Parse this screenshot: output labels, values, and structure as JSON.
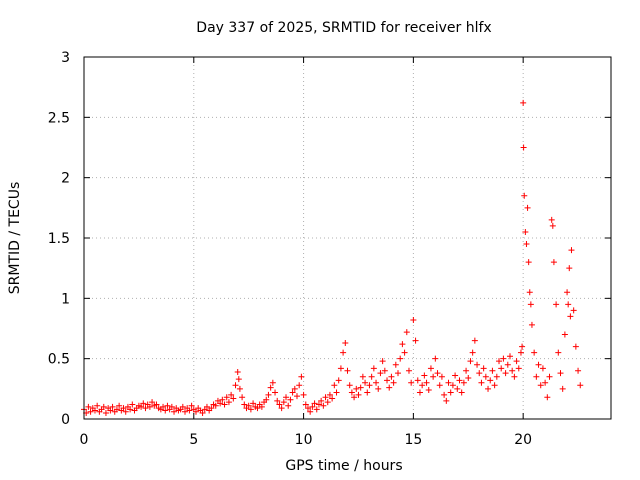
{
  "chart_data": {
    "type": "scatter",
    "title": "Day 337 of 2025, SRMTID for receiver hlfx",
    "xlabel": "GPS time / hours",
    "ylabel": "SRMTID / TECUs",
    "xlim": [
      0,
      24
    ],
    "ylim": [
      0,
      3
    ],
    "xticks": [
      0,
      5,
      10,
      15,
      20
    ],
    "xtick_labels": [
      "0",
      "5",
      "10",
      "15",
      "20"
    ],
    "yticks": [
      0,
      0.5,
      1,
      1.5,
      2,
      2.5,
      3
    ],
    "ytick_labels": [
      "0",
      "0.5",
      "1",
      "1.5",
      "2",
      "2.5",
      "3"
    ],
    "grid": true,
    "marker": "+",
    "color": "#ff0000",
    "series": [
      {
        "name": "SRMTID",
        "x": [
          0.0,
          0.1,
          0.2,
          0.3,
          0.4,
          0.5,
          0.6,
          0.7,
          0.8,
          0.9,
          1.0,
          1.1,
          1.2,
          1.3,
          1.4,
          1.5,
          1.6,
          1.7,
          1.8,
          1.9,
          2.0,
          2.1,
          2.2,
          2.3,
          2.4,
          2.5,
          2.6,
          2.7,
          2.8,
          2.9,
          3.0,
          3.1,
          3.2,
          3.3,
          3.4,
          3.5,
          3.6,
          3.7,
          3.8,
          3.9,
          4.0,
          4.1,
          4.2,
          4.3,
          4.4,
          4.5,
          4.6,
          4.7,
          4.8,
          4.9,
          5.0,
          5.1,
          5.2,
          5.3,
          5.4,
          5.5,
          5.6,
          5.7,
          5.8,
          5.9,
          6.0,
          6.1,
          6.2,
          6.3,
          6.4,
          6.5,
          6.6,
          6.7,
          6.8,
          6.9,
          7.0,
          7.05,
          7.1,
          7.2,
          7.3,
          7.4,
          7.5,
          7.6,
          7.7,
          7.8,
          7.9,
          8.0,
          8.1,
          8.2,
          8.3,
          8.4,
          8.5,
          8.6,
          8.7,
          8.8,
          8.9,
          9.0,
          9.1,
          9.2,
          9.3,
          9.4,
          9.5,
          9.6,
          9.7,
          9.8,
          9.9,
          10.0,
          10.1,
          10.2,
          10.3,
          10.4,
          10.5,
          10.6,
          10.7,
          10.8,
          10.9,
          11.0,
          11.1,
          11.2,
          11.3,
          11.4,
          11.5,
          11.6,
          11.7,
          11.8,
          11.9,
          12.0,
          12.1,
          12.2,
          12.3,
          12.4,
          12.5,
          12.6,
          12.7,
          12.8,
          12.9,
          13.0,
          13.1,
          13.2,
          13.3,
          13.4,
          13.5,
          13.6,
          13.7,
          13.8,
          13.9,
          14.0,
          14.1,
          14.2,
          14.3,
          14.4,
          14.5,
          14.6,
          14.7,
          14.8,
          14.9,
          15.0,
          15.1,
          15.2,
          15.3,
          15.4,
          15.5,
          15.6,
          15.7,
          15.8,
          15.9,
          16.0,
          16.1,
          16.2,
          16.3,
          16.4,
          16.5,
          16.6,
          16.7,
          16.8,
          16.9,
          17.0,
          17.1,
          17.2,
          17.3,
          17.4,
          17.5,
          17.6,
          17.7,
          17.8,
          17.9,
          18.0,
          18.1,
          18.2,
          18.3,
          18.4,
          18.5,
          18.6,
          18.7,
          18.8,
          18.9,
          19.0,
          19.1,
          19.2,
          19.3,
          19.4,
          19.5,
          19.6,
          19.7,
          19.8,
          19.9,
          19.95,
          20.0,
          20.02,
          20.05,
          20.1,
          20.15,
          20.2,
          20.25,
          20.3,
          20.35,
          20.4,
          20.5,
          20.6,
          20.7,
          20.8,
          20.9,
          21.0,
          21.1,
          21.2,
          21.3,
          21.35,
          21.4,
          21.5,
          21.6,
          21.7,
          21.8,
          21.9,
          22.0,
          22.05,
          22.1,
          22.15,
          22.2,
          22.3,
          22.4,
          22.5,
          22.6
        ],
        "y": [
          0.08,
          0.05,
          0.1,
          0.06,
          0.09,
          0.07,
          0.11,
          0.06,
          0.08,
          0.1,
          0.05,
          0.09,
          0.07,
          0.1,
          0.06,
          0.08,
          0.11,
          0.07,
          0.09,
          0.06,
          0.1,
          0.08,
          0.12,
          0.07,
          0.09,
          0.11,
          0.1,
          0.13,
          0.09,
          0.12,
          0.1,
          0.14,
          0.11,
          0.12,
          0.09,
          0.08,
          0.1,
          0.07,
          0.11,
          0.08,
          0.1,
          0.06,
          0.09,
          0.07,
          0.08,
          0.1,
          0.06,
          0.09,
          0.07,
          0.11,
          0.08,
          0.06,
          0.09,
          0.07,
          0.05,
          0.08,
          0.1,
          0.07,
          0.09,
          0.12,
          0.11,
          0.15,
          0.13,
          0.16,
          0.12,
          0.18,
          0.14,
          0.2,
          0.17,
          0.28,
          0.39,
          0.33,
          0.25,
          0.18,
          0.12,
          0.09,
          0.11,
          0.08,
          0.13,
          0.1,
          0.09,
          0.12,
          0.1,
          0.14,
          0.16,
          0.2,
          0.26,
          0.3,
          0.22,
          0.15,
          0.12,
          0.09,
          0.14,
          0.18,
          0.11,
          0.16,
          0.22,
          0.25,
          0.19,
          0.28,
          0.35,
          0.2,
          0.12,
          0.09,
          0.06,
          0.1,
          0.13,
          0.08,
          0.12,
          0.15,
          0.11,
          0.18,
          0.14,
          0.2,
          0.17,
          0.28,
          0.22,
          0.32,
          0.42,
          0.55,
          0.63,
          0.4,
          0.28,
          0.22,
          0.18,
          0.25,
          0.2,
          0.26,
          0.35,
          0.3,
          0.22,
          0.28,
          0.35,
          0.42,
          0.3,
          0.25,
          0.38,
          0.48,
          0.4,
          0.32,
          0.26,
          0.35,
          0.3,
          0.45,
          0.38,
          0.5,
          0.62,
          0.55,
          0.72,
          0.4,
          0.3,
          0.82,
          0.65,
          0.32,
          0.22,
          0.28,
          0.36,
          0.3,
          0.24,
          0.42,
          0.35,
          0.5,
          0.38,
          0.28,
          0.35,
          0.2,
          0.15,
          0.3,
          0.22,
          0.28,
          0.36,
          0.25,
          0.32,
          0.22,
          0.3,
          0.4,
          0.34,
          0.48,
          0.55,
          0.65,
          0.45,
          0.38,
          0.3,
          0.42,
          0.35,
          0.25,
          0.32,
          0.4,
          0.28,
          0.35,
          0.48,
          0.42,
          0.5,
          0.38,
          0.45,
          0.52,
          0.4,
          0.35,
          0.48,
          0.42,
          0.55,
          0.6,
          2.62,
          2.25,
          1.85,
          1.55,
          1.45,
          1.75,
          1.3,
          1.05,
          0.95,
          0.78,
          0.55,
          0.35,
          0.45,
          0.28,
          0.42,
          0.3,
          0.18,
          0.35,
          1.65,
          1.6,
          1.3,
          0.95,
          0.55,
          0.38,
          0.25,
          0.7,
          1.05,
          0.95,
          1.25,
          0.85,
          1.4,
          0.9,
          0.6,
          0.4,
          0.28
        ]
      }
    ]
  }
}
